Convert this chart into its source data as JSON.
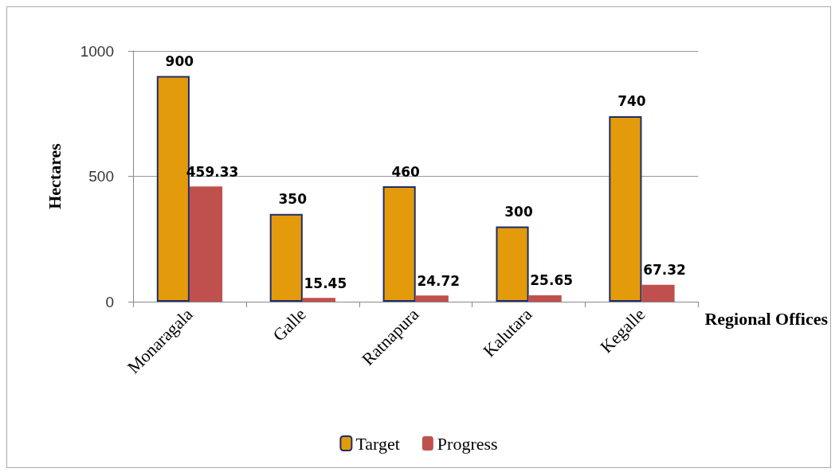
{
  "chart_data": {
    "type": "bar",
    "xlabel": "Regional Offices",
    "ylabel": "Hectares",
    "categories": [
      "Monaragala",
      "Galle",
      "Ratnapura",
      "Kalutara",
      "Kegalle"
    ],
    "series": [
      {
        "name": "Target",
        "color": "#e39b0b",
        "values": [
          900,
          350,
          460,
          300,
          740
        ]
      },
      {
        "name": "Progress",
        "color": "#c0504d",
        "values": [
          459.33,
          15.45,
          24.72,
          25.65,
          67.32
        ]
      }
    ],
    "ylim": [
      0,
      1000
    ],
    "yticks": [
      0,
      500,
      1000
    ],
    "grid": "y",
    "legend": "bottom",
    "data_labels": true
  }
}
